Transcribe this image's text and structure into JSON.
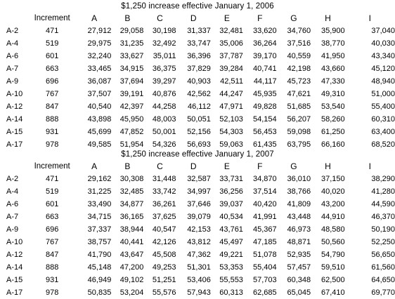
{
  "sections": [
    {
      "title": "$1,250 increase effective January 1, 2006",
      "increment_header": "Increment",
      "columns": [
        "A",
        "B",
        "C",
        "D",
        "E",
        "F",
        "G",
        "H",
        "I"
      ],
      "rows": [
        {
          "label": "A-2",
          "increment": "471",
          "values": [
            "27,912",
            "29,058",
            "30,198",
            "31,337",
            "32,481",
            "33,620",
            "34,760",
            "35,900",
            "37,040"
          ]
        },
        {
          "label": "A-4",
          "increment": "519",
          "values": [
            "29,975",
            "31,235",
            "32,492",
            "33,747",
            "35,006",
            "36,264",
            "37,516",
            "38,770",
            "40,030"
          ]
        },
        {
          "label": "A-6",
          "increment": "601",
          "values": [
            "32,240",
            "33,627",
            "35,011",
            "36,396",
            "37,787",
            "39,170",
            "40,559",
            "41,950",
            "43,340"
          ]
        },
        {
          "label": "A-7",
          "increment": "663",
          "values": [
            "33,465",
            "34,915",
            "36,375",
            "37,829",
            "39,284",
            "40,741",
            "42,198",
            "43,660",
            "45,120"
          ]
        },
        {
          "label": "A-9",
          "increment": "696",
          "values": [
            "36,087",
            "37,694",
            "39,297",
            "40,903",
            "42,511",
            "44,117",
            "45,723",
            "47,330",
            "48,940"
          ]
        },
        {
          "label": "A-10",
          "increment": "767",
          "values": [
            "37,507",
            "39,191",
            "40,876",
            "42,562",
            "44,247",
            "45,935",
            "47,621",
            "49,310",
            "51,000"
          ]
        },
        {
          "label": "A-12",
          "increment": "847",
          "values": [
            "40,540",
            "42,397",
            "44,258",
            "46,112",
            "47,971",
            "49,828",
            "51,685",
            "53,540",
            "55,400"
          ]
        },
        {
          "label": "A-14",
          "increment": "888",
          "values": [
            "43,898",
            "45,950",
            "48,003",
            "50,051",
            "52,103",
            "54,154",
            "56,207",
            "58,260",
            "60,310"
          ]
        },
        {
          "label": "A-15",
          "increment": "931",
          "values": [
            "45,699",
            "47,852",
            "50,001",
            "52,156",
            "54,303",
            "56,453",
            "59,098",
            "61,250",
            "63,400"
          ]
        },
        {
          "label": "A-17",
          "increment": "978",
          "values": [
            "49,585",
            "51,954",
            "54,326",
            "56,693",
            "59,063",
            "61,435",
            "63,795",
            "66,160",
            "68,520"
          ]
        }
      ]
    },
    {
      "title": "$1,250 increase effective January 1, 2007",
      "increment_header": "Increment",
      "columns": [
        "A",
        "B",
        "C",
        "D",
        "E",
        "F",
        "G",
        "H",
        "I"
      ],
      "rows": [
        {
          "label": "A-2",
          "increment": "471",
          "values": [
            "29,162",
            "30,308",
            "31,448",
            "32,587",
            "33,731",
            "34,870",
            "36,010",
            "37,150",
            "38,290"
          ]
        },
        {
          "label": "A-4",
          "increment": "519",
          "values": [
            "31,225",
            "32,485",
            "33,742",
            "34,997",
            "36,256",
            "37,514",
            "38,766",
            "40,020",
            "41,280"
          ]
        },
        {
          "label": "A-6",
          "increment": "601",
          "values": [
            "33,490",
            "34,877",
            "36,261",
            "37,646",
            "39,037",
            "40,420",
            "41,809",
            "43,200",
            "44,590"
          ]
        },
        {
          "label": "A-7",
          "increment": "663",
          "values": [
            "34,715",
            "36,165",
            "37,625",
            "39,079",
            "40,534",
            "41,991",
            "43,448",
            "44,910",
            "46,370"
          ]
        },
        {
          "label": "A-9",
          "increment": "696",
          "values": [
            "37,337",
            "38,944",
            "40,547",
            "42,153",
            "43,761",
            "45,367",
            "46,973",
            "48,580",
            "50,190"
          ]
        },
        {
          "label": "A-10",
          "increment": "767",
          "values": [
            "38,757",
            "40,441",
            "42,126",
            "43,812",
            "45,497",
            "47,185",
            "48,871",
            "50,560",
            "52,250"
          ]
        },
        {
          "label": "A-12",
          "increment": "847",
          "values": [
            "41,790",
            "43,647",
            "45,508",
            "47,362",
            "49,221",
            "51,078",
            "52,935",
            "54,790",
            "56,650"
          ]
        },
        {
          "label": "A-14",
          "increment": "888",
          "values": [
            "45,148",
            "47,200",
            "49,253",
            "51,301",
            "53,353",
            "55,404",
            "57,457",
            "59,510",
            "61,560"
          ]
        },
        {
          "label": "A-15",
          "increment": "931",
          "values": [
            "46,949",
            "49,102",
            "51,251",
            "53,406",
            "55,553",
            "57,703",
            "60,348",
            "62,500",
            "64,650"
          ]
        },
        {
          "label": "A-17",
          "increment": "978",
          "values": [
            "50,835",
            "53,204",
            "55,576",
            "57,943",
            "60,313",
            "62,685",
            "65,045",
            "67,410",
            "69,770"
          ]
        }
      ]
    }
  ]
}
